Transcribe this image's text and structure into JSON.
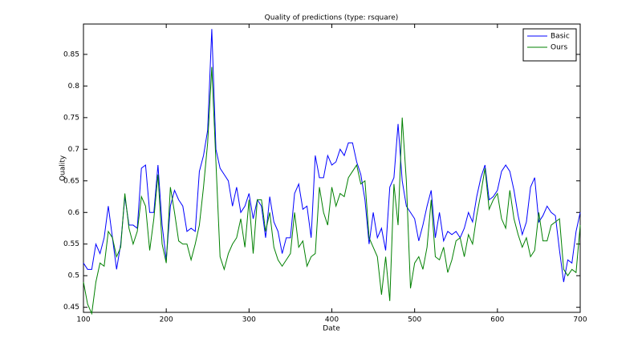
{
  "chart_data": {
    "type": "line",
    "title": "Quality of predictions (type: rsquare)",
    "xlabel": "Date",
    "ylabel": "Quality",
    "x": [
      100,
      105,
      110,
      115,
      120,
      125,
      130,
      135,
      140,
      145,
      150,
      155,
      160,
      165,
      170,
      175,
      180,
      185,
      190,
      195,
      200,
      205,
      210,
      215,
      220,
      225,
      230,
      235,
      240,
      245,
      250,
      255,
      260,
      265,
      270,
      275,
      280,
      285,
      290,
      295,
      300,
      305,
      310,
      315,
      320,
      325,
      330,
      335,
      340,
      345,
      350,
      355,
      360,
      365,
      370,
      375,
      380,
      385,
      390,
      395,
      400,
      405,
      410,
      415,
      420,
      425,
      430,
      435,
      440,
      445,
      450,
      455,
      460,
      465,
      470,
      475,
      480,
      485,
      490,
      495,
      500,
      505,
      510,
      515,
      520,
      525,
      530,
      535,
      540,
      545,
      550,
      555,
      560,
      565,
      570,
      575,
      580,
      585,
      590,
      595,
      600,
      605,
      610,
      615,
      620,
      625,
      630,
      635,
      640,
      645,
      650,
      655,
      660,
      665,
      670,
      675,
      680,
      685,
      690,
      695,
      700
    ],
    "series": [
      {
        "name": "Basic",
        "color": "#0000ff",
        "values": [
          0.52,
          0.51,
          0.51,
          0.55,
          0.535,
          0.56,
          0.61,
          0.56,
          0.51,
          0.55,
          0.625,
          0.58,
          0.58,
          0.575,
          0.67,
          0.675,
          0.6,
          0.6,
          0.675,
          0.58,
          0.525,
          0.61,
          0.635,
          0.62,
          0.61,
          0.57,
          0.575,
          0.57,
          0.665,
          0.69,
          0.73,
          0.89,
          0.7,
          0.67,
          0.66,
          0.65,
          0.61,
          0.64,
          0.6,
          0.61,
          0.63,
          0.59,
          0.62,
          0.61,
          0.56,
          0.625,
          0.585,
          0.57,
          0.535,
          0.56,
          0.56,
          0.63,
          0.645,
          0.605,
          0.61,
          0.56,
          0.69,
          0.655,
          0.655,
          0.69,
          0.675,
          0.68,
          0.7,
          0.69,
          0.71,
          0.71,
          0.68,
          0.66,
          0.62,
          0.55,
          0.6,
          0.56,
          0.575,
          0.54,
          0.64,
          0.655,
          0.74,
          0.65,
          0.61,
          0.6,
          0.59,
          0.555,
          0.58,
          0.61,
          0.635,
          0.56,
          0.6,
          0.555,
          0.57,
          0.565,
          0.57,
          0.56,
          0.575,
          0.6,
          0.585,
          0.625,
          0.655,
          0.675,
          0.62,
          0.625,
          0.635,
          0.665,
          0.675,
          0.665,
          0.635,
          0.595,
          0.565,
          0.585,
          0.64,
          0.655,
          0.585,
          0.595,
          0.61,
          0.6,
          0.595,
          0.54,
          0.49,
          0.525,
          0.52,
          0.57,
          0.6
        ]
      },
      {
        "name": "Ours",
        "color": "#008000",
        "values": [
          0.49,
          0.455,
          0.44,
          0.49,
          0.52,
          0.515,
          0.57,
          0.56,
          0.53,
          0.545,
          0.63,
          0.575,
          0.55,
          0.57,
          0.625,
          0.61,
          0.54,
          0.59,
          0.66,
          0.55,
          0.52,
          0.64,
          0.6,
          0.555,
          0.55,
          0.55,
          0.525,
          0.55,
          0.58,
          0.64,
          0.71,
          0.83,
          0.68,
          0.53,
          0.51,
          0.535,
          0.55,
          0.56,
          0.59,
          0.545,
          0.62,
          0.535,
          0.62,
          0.62,
          0.57,
          0.6,
          0.545,
          0.525,
          0.515,
          0.525,
          0.535,
          0.6,
          0.545,
          0.555,
          0.515,
          0.53,
          0.535,
          0.64,
          0.6,
          0.58,
          0.64,
          0.61,
          0.63,
          0.625,
          0.655,
          0.665,
          0.675,
          0.645,
          0.65,
          0.56,
          0.545,
          0.53,
          0.47,
          0.53,
          0.46,
          0.645,
          0.58,
          0.75,
          0.65,
          0.48,
          0.52,
          0.53,
          0.51,
          0.545,
          0.62,
          0.53,
          0.525,
          0.545,
          0.505,
          0.525,
          0.555,
          0.56,
          0.53,
          0.565,
          0.55,
          0.595,
          0.63,
          0.67,
          0.605,
          0.62,
          0.63,
          0.59,
          0.575,
          0.635,
          0.59,
          0.565,
          0.545,
          0.56,
          0.53,
          0.54,
          0.6,
          0.555,
          0.555,
          0.58,
          0.585,
          0.59,
          0.51,
          0.5,
          0.51,
          0.505,
          0.58
        ]
      }
    ],
    "xlim": [
      100,
      700
    ],
    "xticks": [
      100,
      200,
      300,
      400,
      500,
      600,
      700
    ],
    "ylim": [
      0.442,
      0.898
    ],
    "yticks": [
      0.45,
      0.5,
      0.55,
      0.6,
      0.65,
      0.7,
      0.75,
      0.8,
      0.85
    ],
    "legend": "upper right"
  }
}
